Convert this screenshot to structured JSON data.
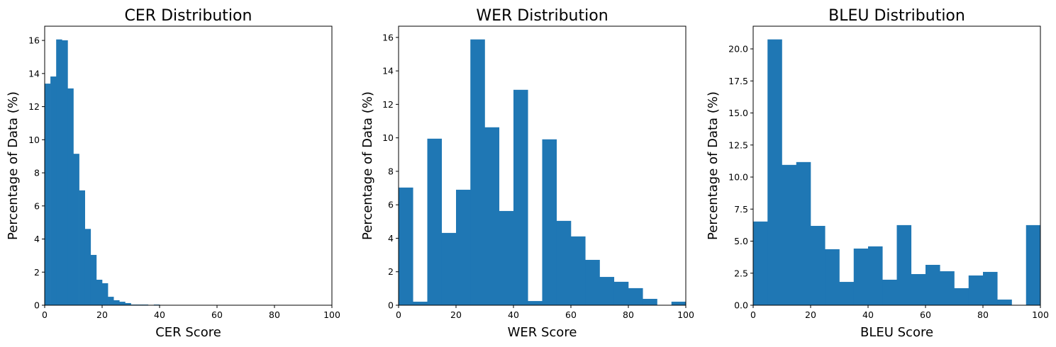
{
  "bar_color": "#1f77b4",
  "chart_data": [
    {
      "type": "bar",
      "title": "CER Distribution",
      "xlabel": "CER Score",
      "ylabel": "Percentage of Data (%)",
      "xlim": [
        0,
        100
      ],
      "ylim": [
        0,
        16.86
      ],
      "xticks": [
        "0",
        "20",
        "40",
        "60",
        "80",
        "100"
      ],
      "yticks": [
        "0",
        "2",
        "4",
        "6",
        "8",
        "10",
        "12",
        "14",
        "16"
      ],
      "grid": false,
      "bin_edges_start": 0,
      "bin_width": 2,
      "values": [
        13.39,
        13.82,
        16.06,
        16.01,
        13.1,
        9.15,
        6.94,
        4.61,
        3.04,
        1.54,
        1.33,
        0.51,
        0.3,
        0.21,
        0.13,
        0.04,
        0.04,
        0.04,
        0,
        0.04,
        0,
        0,
        0,
        0,
        0,
        0,
        0,
        0,
        0,
        0,
        0,
        0,
        0,
        0,
        0,
        0,
        0,
        0,
        0,
        0,
        0,
        0,
        0,
        0,
        0,
        0,
        0,
        0,
        0,
        0
      ]
    },
    {
      "type": "bar",
      "title": "WER Distribution",
      "xlabel": "WER Score",
      "ylabel": "Percentage of Data (%)",
      "xlim": [
        0,
        100
      ],
      "ylim": [
        0,
        16.67
      ],
      "xticks": [
        "0",
        "20",
        "40",
        "60",
        "80",
        "100"
      ],
      "yticks": [
        "0",
        "2",
        "4",
        "6",
        "8",
        "10",
        "12",
        "14",
        "16"
      ],
      "grid": false,
      "bin_edges_start": 0,
      "bin_width": 5,
      "values": [
        7.03,
        0.21,
        9.95,
        4.32,
        6.9,
        15.88,
        10.63,
        5.63,
        12.87,
        0.25,
        9.91,
        5.04,
        4.11,
        2.71,
        1.69,
        1.4,
        1.02,
        0.38,
        0,
        0.21
      ]
    },
    {
      "type": "bar",
      "title": "BLEU Distribution",
      "xlabel": "BLEU Score",
      "ylabel": "Percentage of Data (%)",
      "xlim": [
        0,
        100
      ],
      "ylim": [
        0,
        21.77
      ],
      "xticks": [
        "0",
        "20",
        "40",
        "60",
        "80",
        "100"
      ],
      "yticks": [
        "0.0",
        "2.5",
        "5.0",
        "7.5",
        "10.0",
        "12.5",
        "15.0",
        "17.5",
        "20.0"
      ],
      "grid": false,
      "bin_edges_start": 0,
      "bin_width": 5,
      "values": [
        6.53,
        20.74,
        10.95,
        11.17,
        6.19,
        4.37,
        1.82,
        4.42,
        4.59,
        1.99,
        6.25,
        2.43,
        3.15,
        2.65,
        1.33,
        2.32,
        2.6,
        0.44,
        0,
        6.25
      ]
    }
  ]
}
